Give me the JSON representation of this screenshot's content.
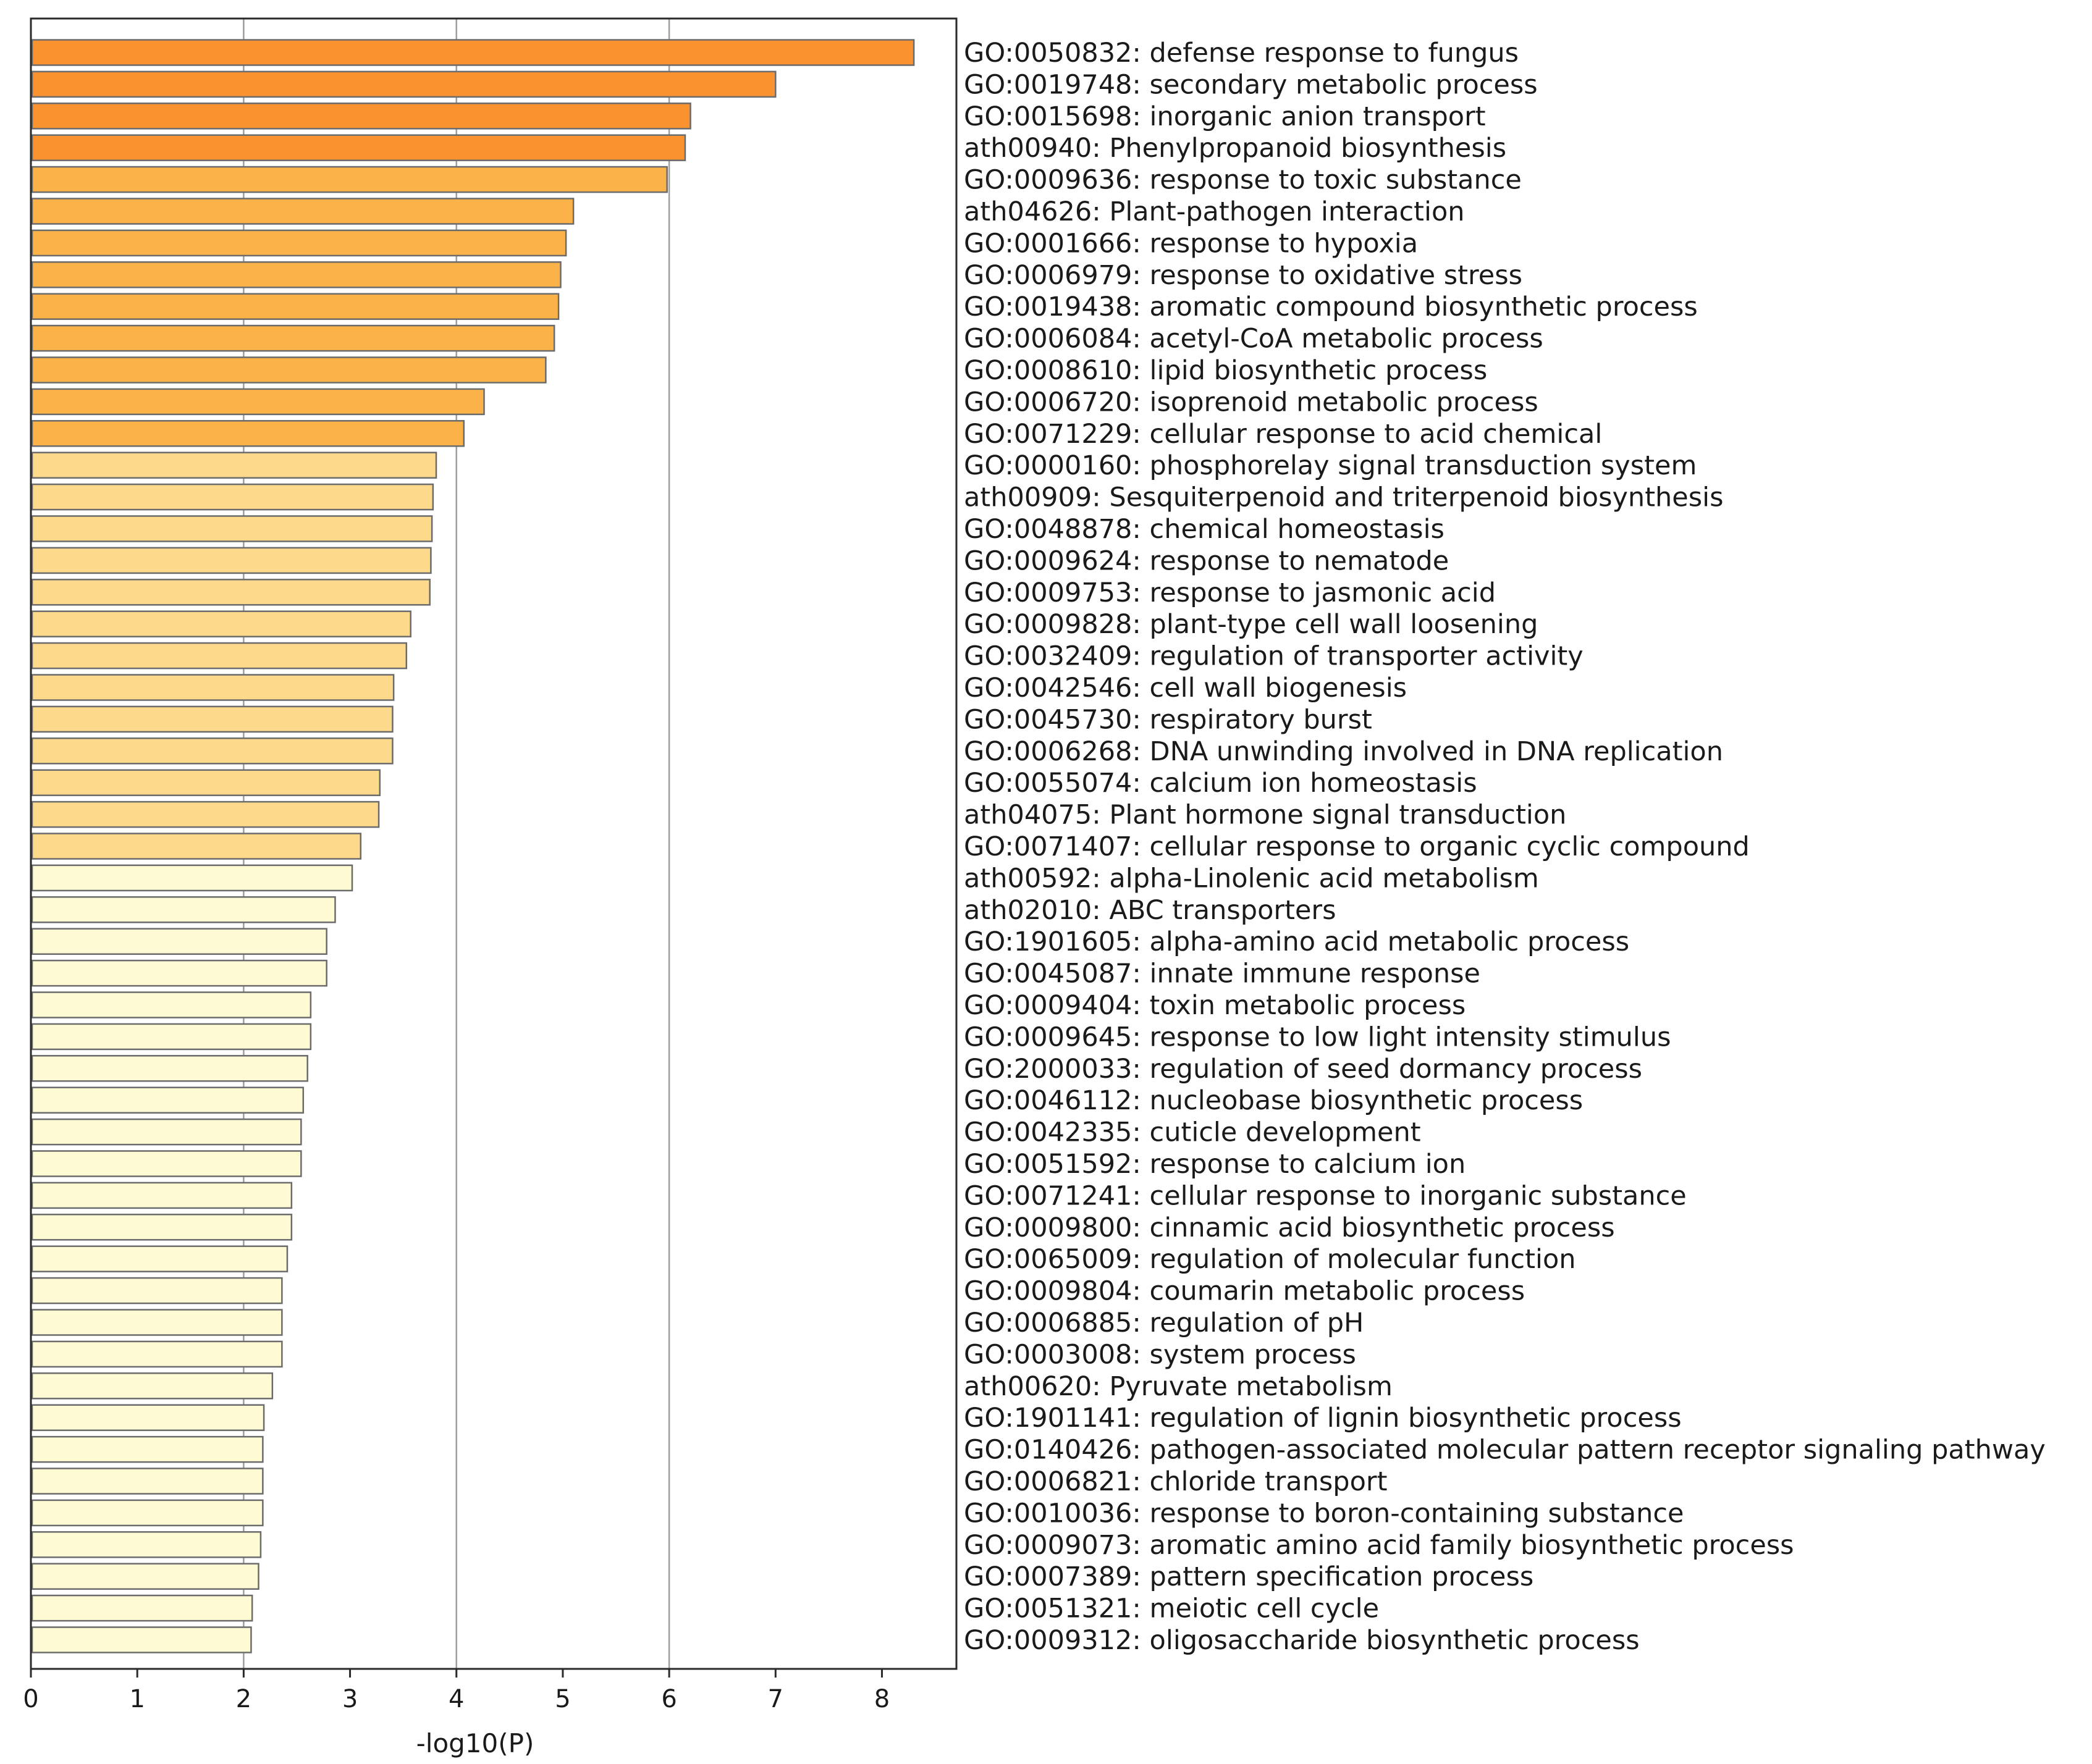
{
  "chart_data": {
    "type": "bar",
    "orientation": "horizontal",
    "xlabel": "-log10(P)",
    "xlim": [
      0,
      8.7
    ],
    "xticks": [
      0,
      1,
      2,
      3,
      4,
      5,
      6,
      7,
      8
    ],
    "grid": "vertical lines at x = 2, 4, 6",
    "legend": "none",
    "colors": {
      "dark_orange": "#f9922f",
      "orange": "#fbb349",
      "light_orange": "#fdd98b",
      "pale_yellow": "#fefad3",
      "bar_edge": "#6b6b6b"
    },
    "categories": [
      "GO:0050832: defense response to fungus",
      "GO:0019748: secondary metabolic process",
      "GO:0015698: inorganic anion transport",
      "ath00940: Phenylpropanoid biosynthesis",
      "GO:0009636: response to toxic substance",
      "ath04626: Plant-pathogen interaction",
      "GO:0001666: response to hypoxia",
      "GO:0006979: response to oxidative stress",
      "GO:0019438: aromatic compound biosynthetic process",
      "GO:0006084: acetyl-CoA metabolic process",
      "GO:0008610: lipid biosynthetic process",
      "GO:0006720: isoprenoid metabolic process",
      "GO:0071229: cellular response to acid chemical",
      "GO:0000160: phosphorelay signal transduction system",
      "ath00909: Sesquiterpenoid and triterpenoid biosynthesis",
      "GO:0048878: chemical homeostasis",
      "GO:0009624: response to nematode",
      "GO:0009753: response to jasmonic acid",
      "GO:0009828: plant-type cell wall loosening",
      "GO:0032409: regulation of transporter activity",
      "GO:0042546: cell wall biogenesis",
      "GO:0045730: respiratory burst",
      "GO:0006268: DNA unwinding involved in DNA replication",
      "GO:0055074: calcium ion homeostasis",
      "ath04075: Plant hormone signal transduction",
      "GO:0071407: cellular response to organic cyclic compound",
      "ath00592: alpha-Linolenic acid metabolism",
      "ath02010: ABC transporters",
      "GO:1901605: alpha-amino acid metabolic process",
      "GO:0045087: innate immune response",
      "GO:0009404: toxin metabolic process",
      "GO:0009645: response to low light intensity stimulus",
      "GO:2000033: regulation of seed dormancy process",
      "GO:0046112: nucleobase biosynthetic process",
      "GO:0042335: cuticle development",
      "GO:0051592: response to calcium ion",
      "GO:0071241: cellular response to inorganic substance",
      "GO:0009800: cinnamic acid biosynthetic process",
      "GO:0065009: regulation of molecular function",
      "GO:0009804: coumarin metabolic process",
      "GO:0006885: regulation of pH",
      "GO:0003008: system process",
      "ath00620: Pyruvate metabolism",
      "GO:1901141: regulation of lignin biosynthetic process",
      "GO:0140426: pathogen-associated molecular pattern receptor signaling pathway",
      "GO:0006821: chloride transport",
      "GO:0010036: response to boron-containing substance",
      "GO:0009073: aromatic amino acid family biosynthetic process",
      "GO:0007389: pattern specification process",
      "GO:0051321: meiotic cell cycle",
      "GO:0009312: oligosaccharide biosynthetic process"
    ],
    "values": [
      8.3,
      7.0,
      6.2,
      6.15,
      5.98,
      5.1,
      5.03,
      4.98,
      4.96,
      4.92,
      4.84,
      4.26,
      4.07,
      3.81,
      3.78,
      3.77,
      3.76,
      3.75,
      3.57,
      3.53,
      3.41,
      3.4,
      3.4,
      3.28,
      3.27,
      3.1,
      3.02,
      2.86,
      2.78,
      2.78,
      2.63,
      2.63,
      2.6,
      2.56,
      2.54,
      2.54,
      2.45,
      2.45,
      2.41,
      2.36,
      2.36,
      2.36,
      2.27,
      2.19,
      2.18,
      2.18,
      2.18,
      2.16,
      2.14,
      2.08,
      2.07
    ],
    "bar_color_keys": [
      "dark_orange",
      "dark_orange",
      "dark_orange",
      "dark_orange",
      "orange",
      "orange",
      "orange",
      "orange",
      "orange",
      "orange",
      "orange",
      "orange",
      "orange",
      "light_orange",
      "light_orange",
      "light_orange",
      "light_orange",
      "light_orange",
      "light_orange",
      "light_orange",
      "light_orange",
      "light_orange",
      "light_orange",
      "light_orange",
      "light_orange",
      "light_orange",
      "pale_yellow",
      "pale_yellow",
      "pale_yellow",
      "pale_yellow",
      "pale_yellow",
      "pale_yellow",
      "pale_yellow",
      "pale_yellow",
      "pale_yellow",
      "pale_yellow",
      "pale_yellow",
      "pale_yellow",
      "pale_yellow",
      "pale_yellow",
      "pale_yellow",
      "pale_yellow",
      "pale_yellow",
      "pale_yellow",
      "pale_yellow",
      "pale_yellow",
      "pale_yellow",
      "pale_yellow",
      "pale_yellow",
      "pale_yellow",
      "pale_yellow"
    ]
  }
}
